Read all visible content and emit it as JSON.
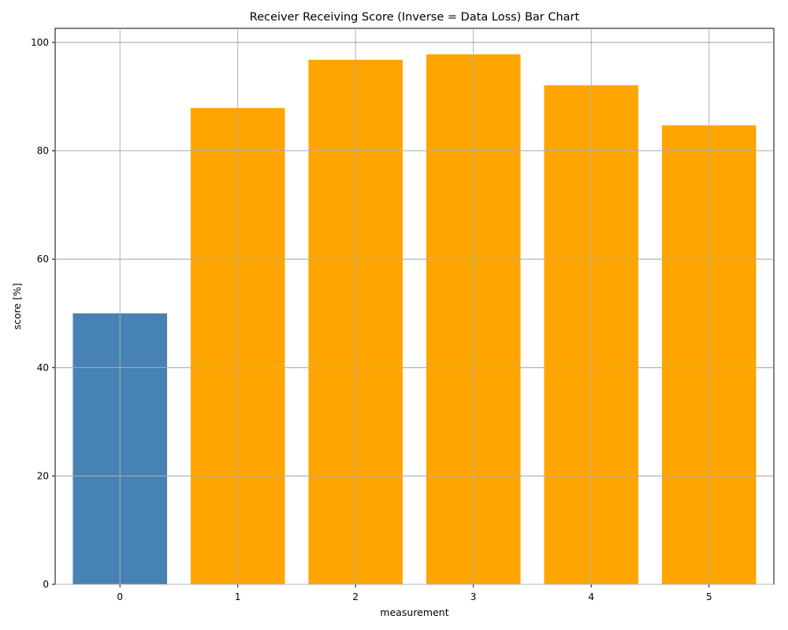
{
  "chart_data": {
    "type": "bar",
    "title": "Receiver Receiving Score (Inverse = Data Loss) Bar Chart",
    "xlabel": "measurement",
    "ylabel": "score [%]",
    "categories": [
      "0",
      "1",
      "2",
      "3",
      "4",
      "5"
    ],
    "values": [
      50.0,
      87.9,
      96.8,
      97.8,
      92.1,
      84.7
    ],
    "bar_colors": [
      "#4682b4",
      "#ffa500",
      "#ffa500",
      "#ffa500",
      "#ffa500",
      "#ffa500"
    ],
    "ylim": [
      0,
      102.6
    ],
    "yticks": [
      0,
      20,
      40,
      60,
      80,
      100
    ],
    "grid": true,
    "legend": "none"
  }
}
